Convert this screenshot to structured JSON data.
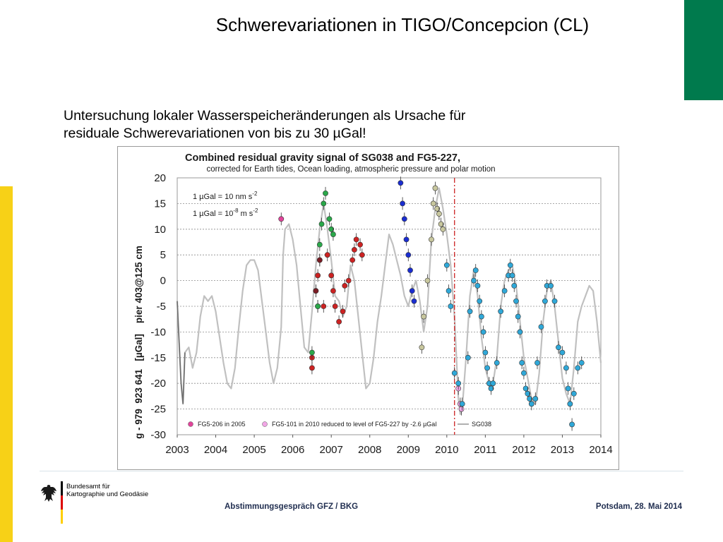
{
  "slide": {
    "title": "Schwerevariationen in TIGO/Concepcion (CL)",
    "intro_line1": "Untersuchung lokaler Wasserspeicheränderungen als Ursache für",
    "intro_line2": "residuale Schwerevariationen von bis zu 30 µGal!",
    "accent_green": "#007a4d",
    "accent_yellow": "#f7d117"
  },
  "footer": {
    "agency_line1": "Bundesamt für",
    "agency_line2": "Kartographie und Geodäsie",
    "event": "Abstimmungsgespräch GFZ / BKG",
    "place_date": "Potsdam, 28. Mai 2014"
  },
  "chart_data": {
    "type": "scatter",
    "title": "Combined residual gravity signal of SG038 and FG5-227,",
    "subtitle": "corrected for Earth tides, Ocean loading, atmospheric pressure and polar motion",
    "ylabel": "g - 979  923 641   [µGal]    pier 403@125 cm",
    "xlabel": "",
    "xlim": [
      2003,
      2014
    ],
    "ylim": [
      -30,
      20
    ],
    "xticks": [
      "2003",
      "2004",
      "2005",
      "2006",
      "2007",
      "2008",
      "2009",
      "2010",
      "2011",
      "2012",
      "2013",
      "2014"
    ],
    "yticks": [
      "20",
      "15",
      "10",
      "5",
      "0",
      "-5",
      "-10",
      "-15",
      "-20",
      "-25",
      "-30"
    ],
    "grid": true,
    "annotation_unit1": "1 µGal = 10 nm s",
    "annotation_unit1_exp": "-2",
    "annotation_unit2a": "1 µGal = 10",
    "annotation_unit2_exp1": "-8",
    "annotation_unit2b": " m s",
    "annotation_unit2_exp2": "-2",
    "legend_position": "bottom",
    "legend": [
      {
        "label": "FG5-206 in 2005",
        "color": "#e0449a"
      },
      {
        "label": "FG5-101 in 2010 reduced to level of FG5-227 by -2.6 µGal",
        "color": "#f2a6e6"
      },
      {
        "label": "SG038",
        "color": "#c0c0c0"
      }
    ],
    "vertical_marker": {
      "x": 2010.2,
      "color": "#cc2222"
    },
    "sg038_line": {
      "color": "#c0c0c0",
      "points": [
        [
          2003.0,
          -4
        ],
        [
          2003.05,
          -12
        ],
        [
          2003.1,
          -20
        ],
        [
          2003.15,
          -24
        ],
        [
          2003.2,
          -14
        ],
        [
          2003.3,
          -13
        ],
        [
          2003.4,
          -17
        ],
        [
          2003.5,
          -14
        ],
        [
          2003.6,
          -7
        ],
        [
          2003.7,
          -3
        ],
        [
          2003.8,
          -4
        ],
        [
          2003.9,
          -3
        ],
        [
          2004.0,
          -6
        ],
        [
          2004.1,
          -11
        ],
        [
          2004.2,
          -16
        ],
        [
          2004.3,
          -20
        ],
        [
          2004.4,
          -21
        ],
        [
          2004.5,
          -17
        ],
        [
          2004.6,
          -9
        ],
        [
          2004.7,
          -2
        ],
        [
          2004.8,
          3
        ],
        [
          2004.9,
          4
        ],
        [
          2005.0,
          4
        ],
        [
          2005.1,
          2
        ],
        [
          2005.2,
          -4
        ],
        [
          2005.3,
          -10
        ],
        [
          2005.4,
          -16
        ],
        [
          2005.5,
          -20
        ],
        [
          2005.6,
          -17
        ],
        [
          2005.7,
          -9
        ],
        [
          2005.75,
          5
        ],
        [
          2005.8,
          10
        ],
        [
          2005.9,
          11
        ],
        [
          2006.0,
          8
        ],
        [
          2006.1,
          3
        ],
        [
          2006.2,
          -5
        ],
        [
          2006.3,
          -13
        ],
        [
          2006.4,
          -14
        ],
        [
          2006.5,
          -6
        ],
        [
          2006.6,
          3
        ],
        [
          2006.7,
          10
        ],
        [
          2006.8,
          15
        ],
        [
          2006.9,
          10
        ],
        [
          2007.0,
          4
        ],
        [
          2007.1,
          -3
        ],
        [
          2007.2,
          -4
        ],
        [
          2007.3,
          -7
        ],
        [
          2007.4,
          -5
        ],
        [
          2007.5,
          3
        ],
        [
          2007.6,
          0
        ],
        [
          2007.7,
          -7
        ],
        [
          2007.8,
          -14
        ],
        [
          2007.9,
          -21
        ],
        [
          2008.0,
          -20
        ],
        [
          2008.1,
          -15
        ],
        [
          2008.2,
          -8
        ],
        [
          2008.3,
          -3
        ],
        [
          2008.4,
          3
        ],
        [
          2008.5,
          9
        ],
        [
          2008.6,
          7
        ],
        [
          2008.7,
          4
        ],
        [
          2008.8,
          1
        ],
        [
          2008.9,
          -3
        ],
        [
          2009.0,
          -5
        ],
        [
          2009.1,
          -2
        ],
        [
          2009.2,
          0
        ],
        [
          2009.3,
          -4
        ],
        [
          2009.4,
          -10
        ],
        [
          2009.5,
          -5
        ],
        [
          2009.6,
          8
        ],
        [
          2009.7,
          14
        ],
        [
          2009.8,
          18
        ],
        [
          2009.9,
          14
        ],
        [
          2010.0,
          9
        ],
        [
          2010.1,
          3
        ],
        [
          2010.2,
          -7
        ],
        [
          2010.3,
          -23
        ],
        [
          2010.35,
          -26
        ],
        [
          2010.4,
          -25
        ],
        [
          2010.5,
          -15
        ],
        [
          2010.6,
          -3
        ],
        [
          2010.7,
          2
        ],
        [
          2010.8,
          -3
        ],
        [
          2010.9,
          -11
        ],
        [
          2011.0,
          -17
        ],
        [
          2011.1,
          -20
        ],
        [
          2011.2,
          -20
        ],
        [
          2011.3,
          -15
        ],
        [
          2011.4,
          -5
        ],
        [
          2011.5,
          0
        ],
        [
          2011.6,
          2
        ],
        [
          2011.7,
          3
        ],
        [
          2011.8,
          -1
        ],
        [
          2011.9,
          -8
        ],
        [
          2012.0,
          -15
        ],
        [
          2012.1,
          -19
        ],
        [
          2012.2,
          -23
        ],
        [
          2012.3,
          -24
        ],
        [
          2012.4,
          -18
        ],
        [
          2012.5,
          -8
        ],
        [
          2012.6,
          -2
        ],
        [
          2012.7,
          0
        ],
        [
          2012.8,
          -5
        ],
        [
          2012.9,
          -12
        ],
        [
          2013.0,
          -19
        ],
        [
          2013.1,
          -22
        ],
        [
          2013.2,
          -24
        ],
        [
          2013.3,
          -17
        ],
        [
          2013.4,
          -8
        ],
        [
          2013.5,
          -5
        ],
        [
          2013.6,
          -3
        ],
        [
          2013.7,
          -1
        ],
        [
          2013.8,
          -2
        ],
        [
          2013.9,
          -8
        ],
        [
          2014.0,
          -16
        ]
      ]
    },
    "series": [
      {
        "name": "FG5-206 in 2005",
        "color": "#e0449a",
        "points": [
          [
            2005.7,
            12
          ]
        ]
      },
      {
        "name": "",
        "color": "#cc2222",
        "points": [
          [
            2006.5,
            -17
          ],
          [
            2006.5,
            -15
          ],
          [
            2006.6,
            -2
          ],
          [
            2006.65,
            1
          ],
          [
            2006.7,
            4
          ],
          [
            2006.8,
            -5
          ],
          [
            2006.9,
            5
          ],
          [
            2007.0,
            1
          ],
          [
            2007.05,
            -2
          ],
          [
            2007.1,
            -5
          ],
          [
            2007.2,
            -8
          ],
          [
            2007.3,
            -6
          ],
          [
            2007.35,
            -1
          ],
          [
            2007.45,
            0
          ],
          [
            2007.55,
            4
          ],
          [
            2007.6,
            6
          ],
          [
            2007.65,
            8
          ],
          [
            2007.75,
            7
          ],
          [
            2007.8,
            5
          ]
        ]
      },
      {
        "name": "",
        "color": "#7b1b23",
        "points": [
          [
            2006.6,
            -2
          ],
          [
            2006.65,
            -5
          ],
          [
            2006.7,
            4
          ]
        ]
      },
      {
        "name": "",
        "color": "#2aa84a",
        "points": [
          [
            2006.5,
            -14
          ],
          [
            2006.65,
            -5
          ],
          [
            2006.7,
            7
          ],
          [
            2006.75,
            11
          ],
          [
            2006.8,
            15
          ],
          [
            2006.85,
            17
          ],
          [
            2006.95,
            12
          ],
          [
            2007.0,
            10
          ],
          [
            2007.05,
            9
          ]
        ]
      },
      {
        "name": "",
        "color": "#1a2dd0",
        "points": [
          [
            2008.8,
            19
          ],
          [
            2008.85,
            15
          ],
          [
            2008.9,
            12
          ],
          [
            2008.95,
            8
          ],
          [
            2009.0,
            5
          ],
          [
            2009.05,
            2
          ],
          [
            2009.1,
            -2
          ],
          [
            2009.15,
            -4
          ]
        ]
      },
      {
        "name": "",
        "color": "#c8c79e",
        "points": [
          [
            2009.35,
            -13
          ],
          [
            2009.4,
            -7
          ],
          [
            2009.5,
            0
          ],
          [
            2009.6,
            8
          ],
          [
            2009.65,
            15
          ],
          [
            2009.7,
            18
          ],
          [
            2009.75,
            14
          ],
          [
            2009.8,
            13
          ],
          [
            2009.85,
            11
          ],
          [
            2009.9,
            10
          ]
        ]
      },
      {
        "name": "FG5-101 in 2010 reduced to level of FG5-227 by -2.6 µGal",
        "color": "#f2a6e6",
        "points": [
          [
            2010.3,
            -21
          ],
          [
            2010.35,
            -24
          ],
          [
            2010.38,
            -25
          ]
        ]
      },
      {
        "name": "",
        "color": "#2fa8d8",
        "points": [
          [
            2010.0,
            3
          ],
          [
            2010.05,
            -2
          ],
          [
            2010.1,
            -5
          ],
          [
            2010.2,
            -18
          ],
          [
            2010.3,
            -20
          ],
          [
            2010.4,
            -24
          ],
          [
            2010.55,
            -15
          ],
          [
            2010.6,
            -6
          ],
          [
            2010.7,
            0
          ],
          [
            2010.75,
            2
          ],
          [
            2010.8,
            -1
          ],
          [
            2010.85,
            -4
          ],
          [
            2010.9,
            -7
          ],
          [
            2010.95,
            -10
          ],
          [
            2011.0,
            -14
          ],
          [
            2011.05,
            -17
          ],
          [
            2011.1,
            -20
          ],
          [
            2011.15,
            -21
          ],
          [
            2011.2,
            -20
          ],
          [
            2011.3,
            -16
          ],
          [
            2011.4,
            -6
          ],
          [
            2011.5,
            -2
          ],
          [
            2011.6,
            1
          ],
          [
            2011.65,
            3
          ],
          [
            2011.7,
            1
          ],
          [
            2011.75,
            -1
          ],
          [
            2011.8,
            -4
          ],
          [
            2011.85,
            -7
          ],
          [
            2011.9,
            -10
          ],
          [
            2011.95,
            -16
          ],
          [
            2012.0,
            -18
          ],
          [
            2012.05,
            -21
          ],
          [
            2012.1,
            -22
          ],
          [
            2012.15,
            -23
          ],
          [
            2012.2,
            -24
          ],
          [
            2012.3,
            -23
          ],
          [
            2012.35,
            -16
          ],
          [
            2012.45,
            -9
          ],
          [
            2012.55,
            -4
          ],
          [
            2012.6,
            -1
          ],
          [
            2012.7,
            -1
          ],
          [
            2012.8,
            -4
          ],
          [
            2012.9,
            -13
          ],
          [
            2013.0,
            -14
          ],
          [
            2013.1,
            -17
          ],
          [
            2013.15,
            -21
          ],
          [
            2013.2,
            -24
          ],
          [
            2013.25,
            -28
          ],
          [
            2013.3,
            -22
          ],
          [
            2013.4,
            -17
          ],
          [
            2013.5,
            -16
          ]
        ]
      }
    ]
  }
}
